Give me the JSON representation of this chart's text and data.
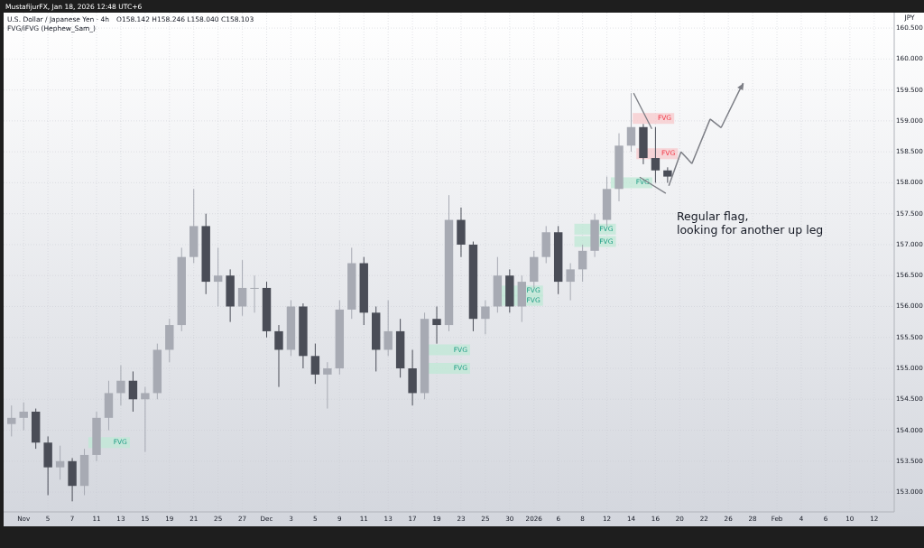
{
  "chart_data": {
    "type": "candlestick",
    "title": "U.S. Dollar / Japanese Yen · 4h",
    "subtitle": "O158.142  H158.246  L158.040  C158.103",
    "ylabel": "JPY",
    "categories": [
      null,
      "Nov",
      null,
      "5",
      null,
      "7",
      null,
      "11",
      null,
      "13",
      null,
      "15",
      null,
      "19",
      null,
      "21",
      null,
      "25",
      null,
      "27",
      null,
      "Dec",
      null,
      "3",
      null,
      "5",
      null,
      "9",
      null,
      "11",
      null,
      "13",
      null,
      "17",
      null,
      "19",
      null,
      "23",
      null,
      "25",
      null,
      "30",
      null,
      "2026",
      null,
      "6",
      null,
      "8",
      null,
      "12",
      null,
      "14",
      null,
      "16",
      null,
      "20",
      null,
      "22",
      null,
      "26",
      null,
      "28",
      null,
      "Feb",
      null,
      "4",
      null,
      "6",
      null,
      "10",
      null,
      "12",
      null
    ],
    "ohlc": [
      [
        154.1,
        154.4,
        153.9,
        154.2
      ],
      [
        154.2,
        154.45,
        154.0,
        154.3
      ],
      [
        154.3,
        154.35,
        153.7,
        153.8
      ],
      [
        153.8,
        153.9,
        152.95,
        153.4
      ],
      [
        153.4,
        153.75,
        153.2,
        153.5
      ],
      [
        153.5,
        153.55,
        152.85,
        153.1
      ],
      [
        153.1,
        153.7,
        152.95,
        153.6
      ],
      [
        153.6,
        154.3,
        153.5,
        154.2
      ],
      [
        154.2,
        154.8,
        154.0,
        154.6
      ],
      [
        154.6,
        155.05,
        154.4,
        154.8
      ],
      [
        154.8,
        154.95,
        154.3,
        154.5
      ],
      [
        154.5,
        154.7,
        153.65,
        154.6
      ],
      [
        154.6,
        155.4,
        154.5,
        155.3
      ],
      [
        155.3,
        155.8,
        155.1,
        155.7
      ],
      [
        155.7,
        156.95,
        155.6,
        156.8
      ],
      [
        156.8,
        157.9,
        156.7,
        157.3
      ],
      [
        157.3,
        157.5,
        156.2,
        156.4
      ],
      [
        156.4,
        156.95,
        156.0,
        156.5
      ],
      [
        156.5,
        156.6,
        155.75,
        156.0
      ],
      [
        156.0,
        156.75,
        155.85,
        156.3
      ],
      [
        156.3,
        156.5,
        155.9,
        156.3
      ],
      [
        156.3,
        156.4,
        155.5,
        155.6
      ],
      [
        155.6,
        155.7,
        154.7,
        155.3
      ],
      [
        155.3,
        156.1,
        155.2,
        156.0
      ],
      [
        156.0,
        156.05,
        155.0,
        155.2
      ],
      [
        155.2,
        155.4,
        154.75,
        154.9
      ],
      [
        154.9,
        155.1,
        154.35,
        155.0
      ],
      [
        155.0,
        156.1,
        154.9,
        155.95
      ],
      [
        155.95,
        156.95,
        155.8,
        156.7
      ],
      [
        156.7,
        156.8,
        155.7,
        155.9
      ],
      [
        155.9,
        156.0,
        154.95,
        155.3
      ],
      [
        155.3,
        156.1,
        155.2,
        155.6
      ],
      [
        155.6,
        155.8,
        154.85,
        155.0
      ],
      [
        155.0,
        155.3,
        154.4,
        154.6
      ],
      [
        154.6,
        155.9,
        154.5,
        155.8
      ],
      [
        155.8,
        156.0,
        155.4,
        155.7
      ],
      [
        155.7,
        157.8,
        155.6,
        157.4
      ],
      [
        157.4,
        157.6,
        156.8,
        157.0
      ],
      [
        157.0,
        157.05,
        155.6,
        155.8
      ],
      [
        155.8,
        156.1,
        155.55,
        156.0
      ],
      [
        156.0,
        156.8,
        155.9,
        156.5
      ],
      [
        156.5,
        156.6,
        155.9,
        156.0
      ],
      [
        156.0,
        156.5,
        155.75,
        156.4
      ],
      [
        156.4,
        156.9,
        156.3,
        156.8
      ],
      [
        156.8,
        157.3,
        156.7,
        157.2
      ],
      [
        157.2,
        157.3,
        156.2,
        156.4
      ],
      [
        156.4,
        156.7,
        156.1,
        156.6
      ],
      [
        156.6,
        157.0,
        156.4,
        156.9
      ],
      [
        156.9,
        157.5,
        156.8,
        157.4
      ],
      [
        157.4,
        158.1,
        157.3,
        157.9
      ],
      [
        157.9,
        158.8,
        157.7,
        158.6
      ],
      [
        158.6,
        159.45,
        158.5,
        158.9
      ],
      [
        158.9,
        158.95,
        158.3,
        158.4
      ],
      [
        158.4,
        158.9,
        158.0,
        158.2
      ],
      [
        158.2,
        158.25,
        158.0,
        158.1
      ],
      null,
      null,
      null,
      null,
      null,
      null,
      null,
      null,
      null,
      null,
      null,
      null,
      null,
      null,
      null,
      null,
      null,
      null
    ],
    "ylim": [
      152.68,
      160.75
    ],
    "yticks": [
      {
        "value": 153,
        "label": "153.000"
      },
      {
        "value": 153.5,
        "label": "153.500"
      },
      {
        "value": 154,
        "label": "154.000"
      },
      {
        "value": 154.5,
        "label": "154.500"
      },
      {
        "value": 155,
        "label": "155.000"
      },
      {
        "value": 155.5,
        "label": "155.500"
      },
      {
        "value": 156,
        "label": "156.000"
      },
      {
        "value": 156.5,
        "label": "156.500"
      },
      {
        "value": 157,
        "label": "157.000"
      },
      {
        "value": 157.5,
        "label": "157.500"
      },
      {
        "value": 158,
        "label": "158.000"
      },
      {
        "value": 158.5,
        "label": "158.500"
      },
      {
        "value": 159,
        "label": "159.000"
      },
      {
        "value": 159.5,
        "label": "159.500"
      },
      {
        "value": 160,
        "label": "160.000"
      },
      {
        "value": 160.5,
        "label": "160.500"
      }
    ],
    "grid": true,
    "annotations": [
      "MustafijurFX, Jan 18, 2026 12:48 UTC+6",
      "FVG/iFVG (Hephew_Sam_)",
      "Regular flag,\nlooking for another up leg",
      "FVG",
      "FVG",
      "FVG",
      "FVG",
      "FVG",
      "FVG",
      "FVG",
      "FVG",
      "FVG",
      "FVG"
    ]
  }
}
